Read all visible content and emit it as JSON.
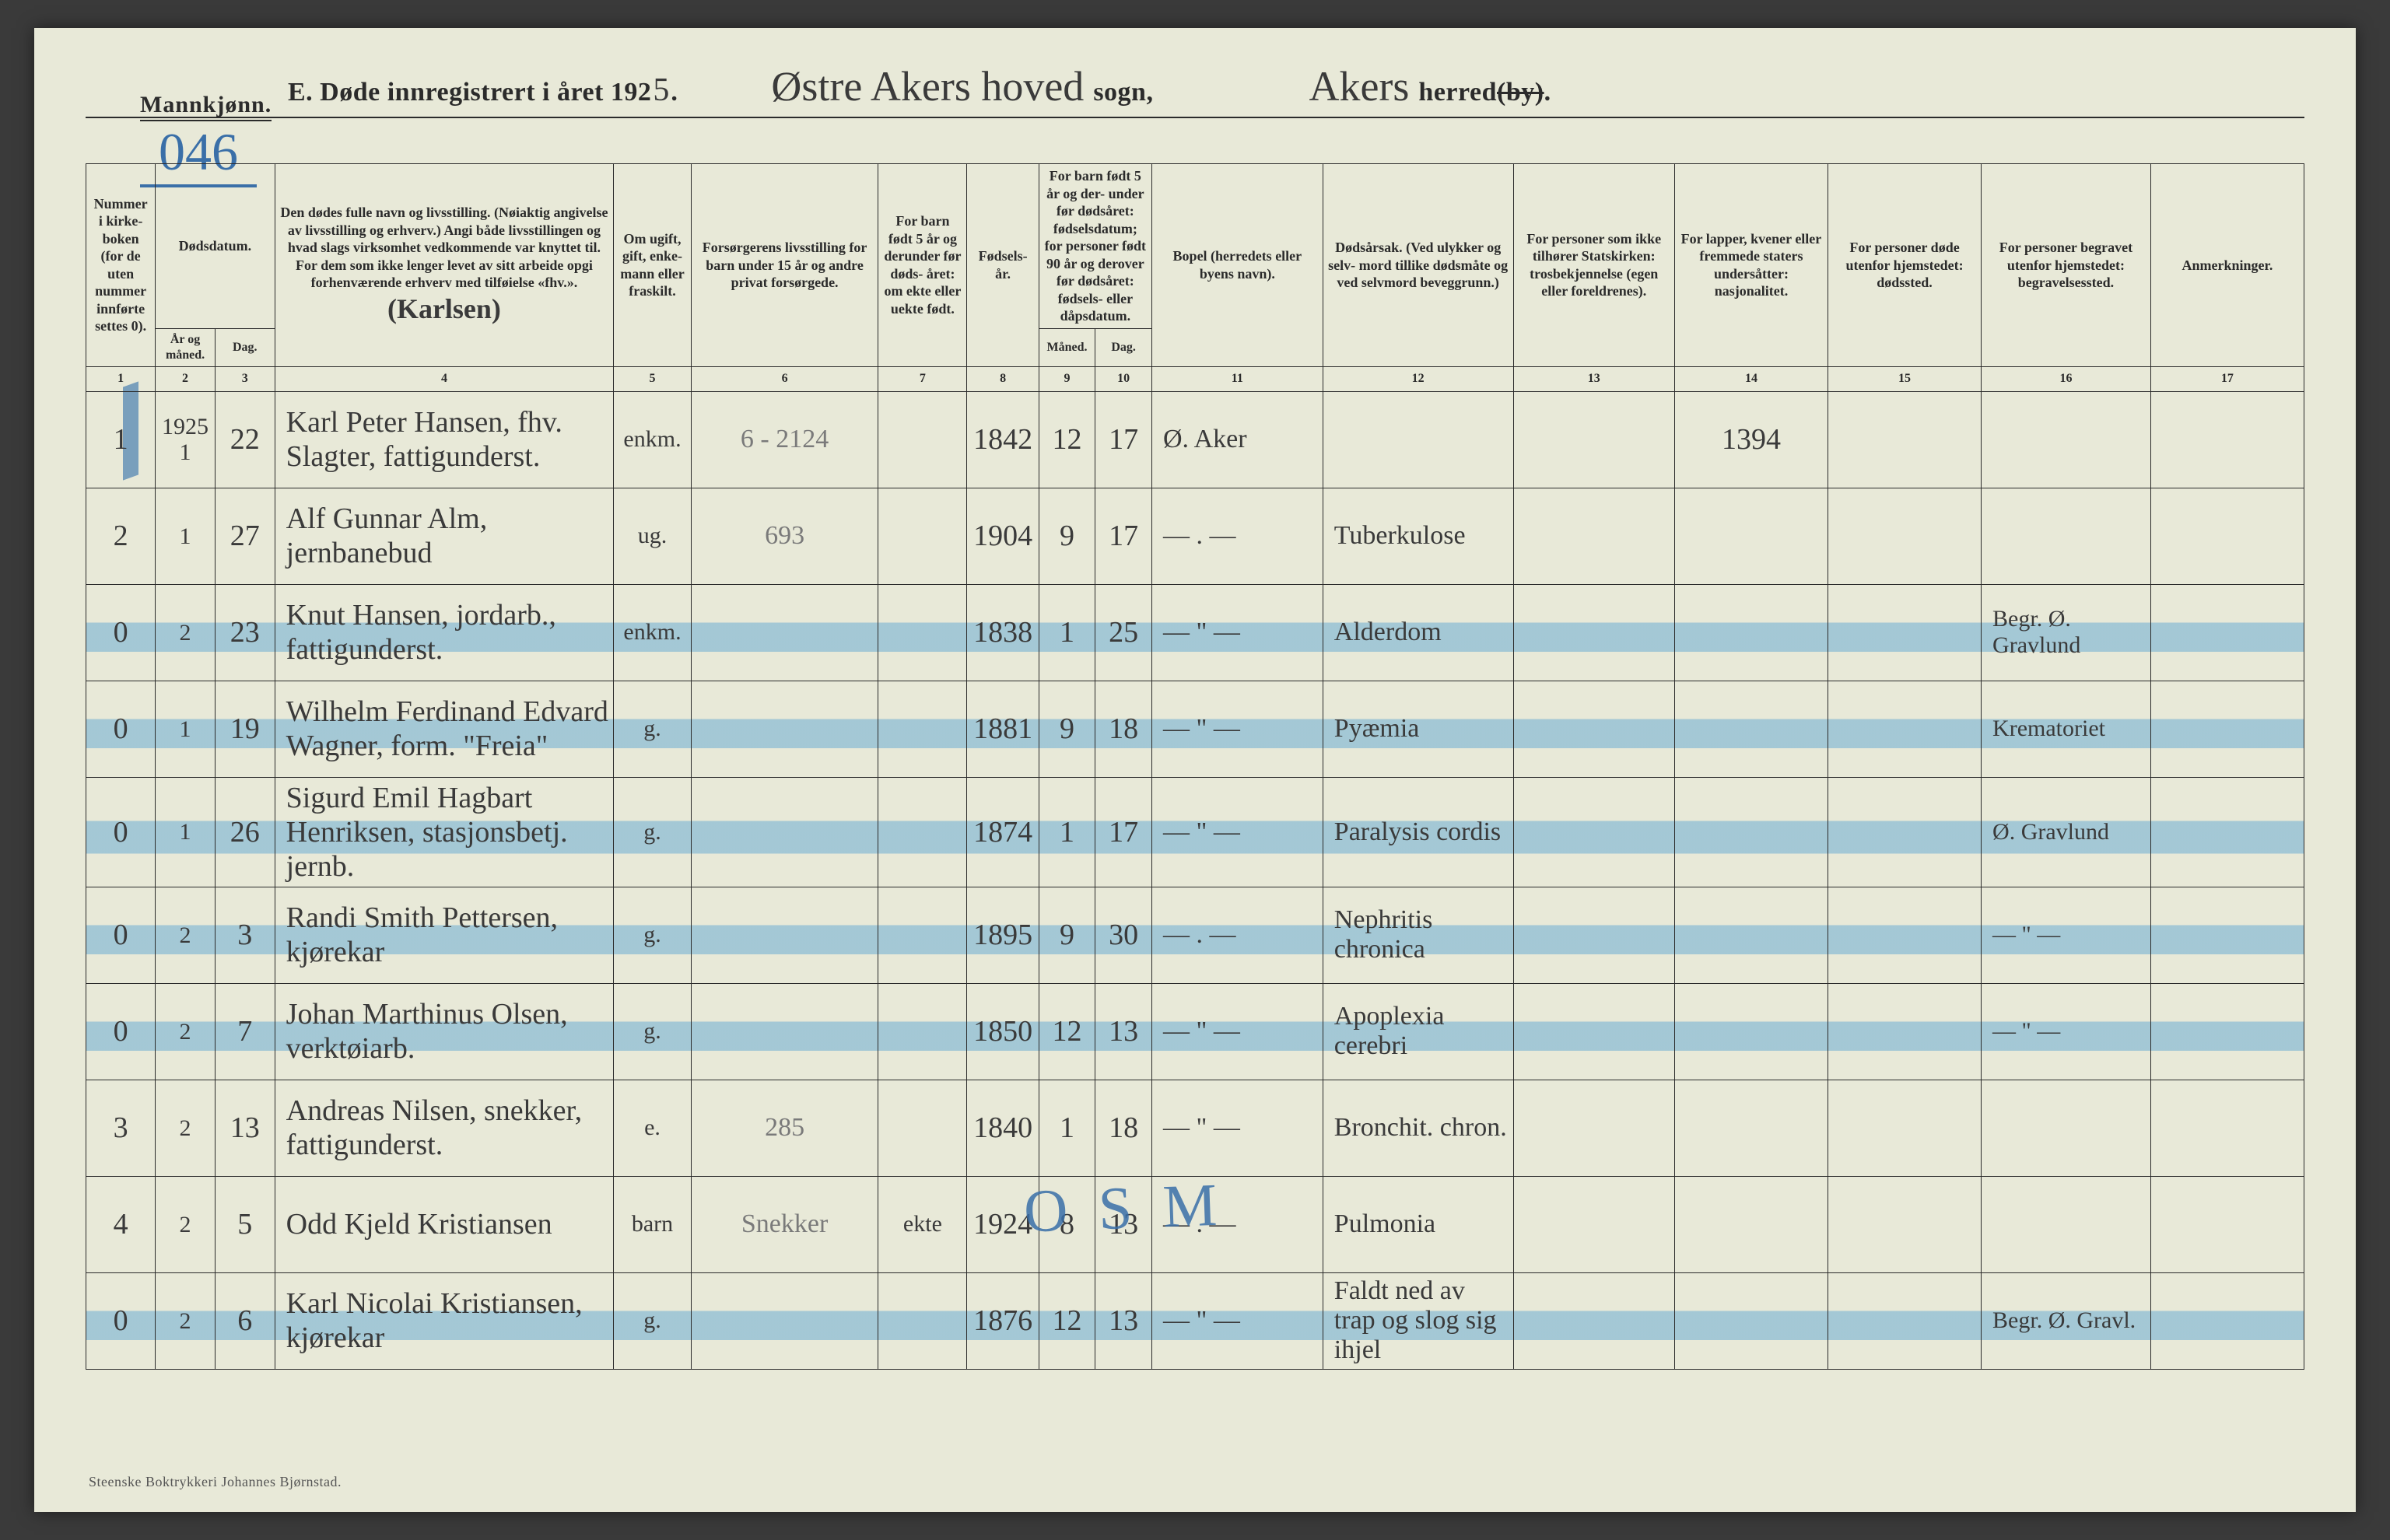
{
  "colors": {
    "paper": "#e8e9d8",
    "ink": "#2b2b2b",
    "pencil_blue": "#3a6fa8",
    "highlight_blue": "rgba(80,160,210,0.45)",
    "background": "#3a3a3a"
  },
  "header": {
    "mannkjonn": "Mannkjønn.",
    "page_number": "046",
    "title_prefix": "E.  Døde innregistrert i året 192",
    "year_suffix": "5",
    "period": ".",
    "sogn_hand": "Østre  Akers  hoved",
    "sogn_label": " sogn,",
    "herred_hand": "Akers",
    "herred_label": " herred ",
    "herred_strike": "(by)",
    "herred_period": "."
  },
  "columns": {
    "1": "Nummer i kirke- boken (for de uten nummer innførte settes 0).",
    "2_3": "Dødsdatum.",
    "2": "År og måned.",
    "3": "Dag.",
    "4": "Den dødes fulle navn og livsstilling. (Nøiaktig angivelse av livsstilling og erhverv.) Angi både livsstillingen og hvad slags virksomhet vedkommende var knyttet til. For dem som ikke lenger levet av sitt arbeide opgi forhenværende erhverv med tilføielse «fhv.».",
    "4_hand": "(Karlsen)",
    "5": "Om ugift, gift, enke- mann eller fraskilt.",
    "6": "Forsørgerens livsstilling for barn under 15 år og andre privat forsørgede.",
    "7": "For barn født 5 år og derunder før døds- året: om ekte eller uekte født.",
    "8": "Fødsels- år.",
    "9_10": "For barn født 5 år og der- under før dødsåret: fødselsdatum; for personer født 90 år og derover før dødsåret: fødsels- eller dåpsdatum.",
    "9": "Måned.",
    "10": "Dag.",
    "11": "Bopel (herredets eller byens navn).",
    "12": "Dødsårsak. (Ved ulykker og selv- mord tillike dødsmåte og ved selvmord beveggrunn.)",
    "13": "For personer som ikke tilhører Statskirken: trosbekjennelse (egen eller foreldrenes).",
    "14": "For lapper, kvener eller fremmede staters undersåtter: nasjonalitet.",
    "15": "For personer døde utenfor hjemstedet: dødssted.",
    "16": "For personer begravet utenfor hjemstedet: begravelsessted.",
    "17": "Anmerkninger."
  },
  "col_nums": [
    "1",
    "2",
    "3",
    "4",
    "5",
    "6",
    "7",
    "8",
    "9",
    "10",
    "11",
    "12",
    "13",
    "14",
    "15",
    "16",
    "17"
  ],
  "rows": [
    {
      "hl": false,
      "n": "1",
      "ym_top": "1925",
      "ym": "1",
      "d": "22",
      "name": "Karl Peter Hansen, fhv. Slagter, fattigunderst.",
      "stat": "enkm.",
      "fors": "6 - 2124",
      "c7": "",
      "yr": "1842",
      "m": "12",
      "dd": "17",
      "bopel": "Ø. Aker",
      "cause": "",
      "c13": "",
      "c14": "1394",
      "c15": "",
      "c16": "",
      "c17": ""
    },
    {
      "hl": false,
      "n": "2",
      "ym": "1",
      "d": "27",
      "name": "Alf Gunnar Alm, jernbanebud",
      "stat": "ug.",
      "fors": "693",
      "c7": "",
      "yr": "1904",
      "m": "9",
      "dd": "17",
      "bopel": "— . —",
      "cause": "Tuberkulose",
      "c13": "",
      "c14": "",
      "c15": "",
      "c16": "",
      "c17": ""
    },
    {
      "hl": true,
      "n": "0",
      "ym": "2",
      "d": "23",
      "name": "Knut Hansen, jordarb., fattigunderst.",
      "stat": "enkm.",
      "fors": "",
      "c7": "",
      "yr": "1838",
      "m": "1",
      "dd": "25",
      "bopel": "— \" —",
      "cause": "Alderdom",
      "c13": "",
      "c14": "",
      "c15": "",
      "c16": "Begr. Ø. Gravlund",
      "c17": ""
    },
    {
      "hl": true,
      "n": "0",
      "ym": "1",
      "d": "19",
      "name": "Wilhelm Ferdinand Edvard Wagner, form. \"Freia\"",
      "stat": "g.",
      "fors": "",
      "c7": "",
      "yr": "1881",
      "m": "9",
      "dd": "18",
      "bopel": "— \" —",
      "cause": "Pyæmia",
      "c13": "",
      "c14": "",
      "c15": "",
      "c16": "Krematoriet",
      "c17": ""
    },
    {
      "hl": true,
      "n": "0",
      "ym": "1",
      "d": "26",
      "name": "Sigurd Emil Hagbart Henriksen, stasjonsbetj. jernb.",
      "stat": "g.",
      "fors": "",
      "c7": "",
      "yr": "1874",
      "m": "1",
      "dd": "17",
      "bopel": "— \" —",
      "cause": "Paralysis cordis",
      "c13": "",
      "c14": "",
      "c15": "",
      "c16": "Ø. Gravlund",
      "c17": ""
    },
    {
      "hl": true,
      "n": "0",
      "ym": "2",
      "d": "3",
      "name": "Randi Smith Pettersen, kjørekar",
      "stat": "g.",
      "fors": "",
      "c7": "",
      "yr": "1895",
      "m": "9",
      "dd": "30",
      "bopel": "— . —",
      "cause": "Nephritis chronica",
      "c13": "",
      "c14": "",
      "c15": "",
      "c16": "— \" —",
      "c17": ""
    },
    {
      "hl": true,
      "n": "0",
      "ym": "2",
      "d": "7",
      "name": "Johan Marthinus Olsen, verktøiarb.",
      "stat": "g.",
      "fors": "",
      "c7": "",
      "yr": "1850",
      "m": "12",
      "dd": "13",
      "bopel": "— \" —",
      "cause": "Apoplexia cerebri",
      "c13": "",
      "c14": "",
      "c15": "",
      "c16": "— \" —",
      "c17": ""
    },
    {
      "hl": false,
      "n": "3",
      "ym": "2",
      "d": "13",
      "name": "Andreas Nilsen, snekker, fattigunderst.",
      "stat": "e.",
      "fors": "285",
      "c7": "",
      "yr": "1840",
      "m": "1",
      "dd": "18",
      "bopel": "— \" —",
      "cause": "Bronchit. chron.",
      "c13": "",
      "c14": "",
      "c15": "",
      "c16": "",
      "c17": ""
    },
    {
      "hl": false,
      "n": "4",
      "ym": "2",
      "d": "5",
      "name": "Odd Kjeld Kristiansen",
      "stat": "barn",
      "fors": "Snekker",
      "c7": "ekte",
      "yr": "1924",
      "m": "8",
      "dd": "13",
      "bopel": "— . —",
      "cause": "Pulmonia",
      "c13": "",
      "c14": "",
      "c15": "",
      "c16": "",
      "c17": ""
    },
    {
      "hl": true,
      "n": "0",
      "ym": "2",
      "d": "6",
      "name": "Karl Nicolai Kristiansen, kjørekar",
      "stat": "g.",
      "fors": "",
      "c7": "",
      "yr": "1876",
      "m": "12",
      "dd": "13",
      "bopel": "— \" —",
      "cause": "Faldt ned av trap og slog sig ihjel",
      "c13": "",
      "c14": "",
      "c15": "",
      "c16": "Begr. Ø. Gravl.",
      "c17": ""
    }
  ],
  "overlay_osm": "O S M",
  "footer": "Steenske Boktrykkeri Johannes Bjørnstad."
}
